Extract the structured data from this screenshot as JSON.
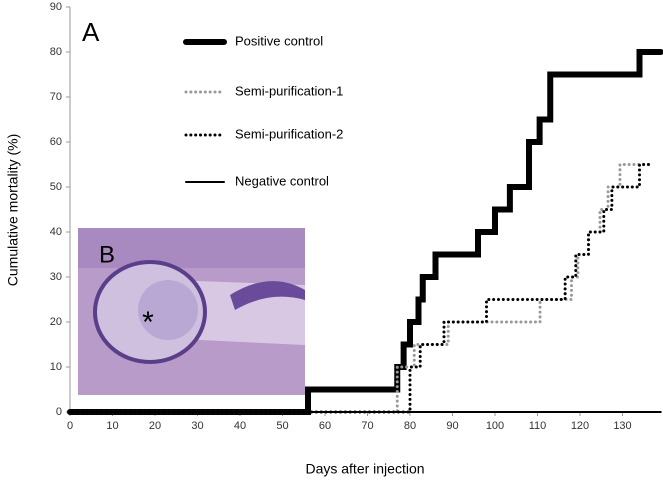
{
  "chart_data": {
    "type": "line",
    "step": true,
    "panel_label": "A",
    "inset_label": "B",
    "inset_marker": "*",
    "x_label": "Days after injection",
    "y_label": "Cumulative mortality (%)",
    "xlim": [
      0,
      140
    ],
    "ylim": [
      0,
      90
    ],
    "xticks": [
      0,
      10,
      20,
      30,
      40,
      50,
      60,
      70,
      80,
      90,
      100,
      110,
      120,
      130
    ],
    "yticks": [
      0,
      10,
      20,
      30,
      40,
      50,
      60,
      70,
      80,
      90
    ],
    "grid": false,
    "legend": "upper left",
    "series": [
      {
        "name": "Positive control",
        "color": "#000000",
        "line_width": 6,
        "line_style": "solid",
        "x": [
          0,
          56,
          77,
          78.5,
          80,
          82,
          83,
          86,
          96,
          100,
          103.5,
          108,
          110.5,
          113,
          134,
          139
        ],
        "values": [
          0,
          5,
          10,
          15,
          20,
          25,
          30,
          35,
          40,
          45,
          50,
          60,
          65,
          75,
          80,
          80
        ]
      },
      {
        "name": "Semi-purification-1",
        "color": "#999999",
        "line_width": 3,
        "line_style": "dotted",
        "x": [
          0,
          77,
          81,
          89,
          110.6,
          118,
          119.5,
          122,
          124.7,
          126.6,
          129.4,
          137
        ],
        "values": [
          0,
          10,
          15,
          20,
          25,
          30,
          35,
          40,
          45,
          50,
          55,
          55
        ]
      },
      {
        "name": "Semi-purification-2",
        "color": "#000000",
        "line_width": 3,
        "line_style": "dotted",
        "x": [
          0,
          80,
          82.4,
          88,
          98,
          116.5,
          119,
          122,
          125.6,
          127.5,
          134,
          137
        ],
        "values": [
          0,
          10,
          15,
          20,
          25,
          30,
          35,
          40,
          45,
          50,
          55,
          55
        ]
      },
      {
        "name": "Negative control",
        "color": "#000000",
        "line_width": 2,
        "line_style": "solid",
        "x": [
          0,
          139
        ],
        "values": [
          0,
          0
        ]
      }
    ]
  }
}
